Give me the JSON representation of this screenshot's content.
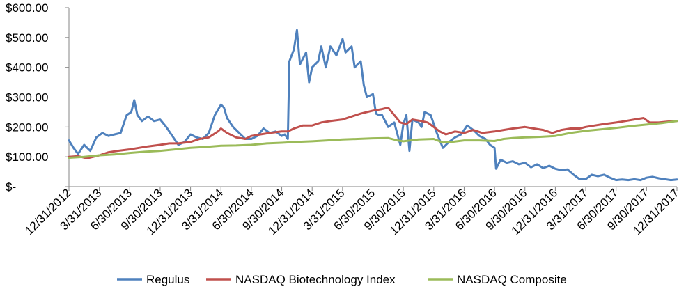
{
  "chart_data": {
    "type": "line",
    "title": "",
    "xlabel": "",
    "ylabel": "",
    "ylim": [
      0,
      600
    ],
    "grid": false,
    "legend_position": "bottom",
    "y_ticks": [
      {
        "value": 0,
        "label": "$-"
      },
      {
        "value": 100,
        "label": "$100.00"
      },
      {
        "value": 200,
        "label": "$200.00"
      },
      {
        "value": 300,
        "label": "$300.00"
      },
      {
        "value": 400,
        "label": "$400.00"
      },
      {
        "value": 500,
        "label": "$500.00"
      },
      {
        "value": 600,
        "label": "$600.00"
      }
    ],
    "x_labels": [
      "12/31/2012",
      "3/31/2013",
      "6/30/2013",
      "9/30/2013",
      "12/31/2013",
      "3/31/2014",
      "6/30/2014",
      "9/30/2014",
      "12/31/2014",
      "3/31/2015",
      "6/30/2015",
      "9/30/2015",
      "12/31/2015",
      "3/31/2016",
      "6/30/2016",
      "9/30/2016",
      "12/31/2016",
      "3/31/2017",
      "6/30/2017",
      "9/30/2017",
      "12/31/2017"
    ],
    "series": [
      {
        "name": "Regulus",
        "color": "#4f81bd",
        "points": [
          [
            0,
            155
          ],
          [
            0.15,
            130
          ],
          [
            0.3,
            110
          ],
          [
            0.5,
            140
          ],
          [
            0.7,
            120
          ],
          [
            0.9,
            165
          ],
          [
            1.1,
            180
          ],
          [
            1.3,
            170
          ],
          [
            1.5,
            175
          ],
          [
            1.7,
            180
          ],
          [
            1.9,
            240
          ],
          [
            2.05,
            250
          ],
          [
            2.15,
            290
          ],
          [
            2.25,
            240
          ],
          [
            2.4,
            220
          ],
          [
            2.6,
            235
          ],
          [
            2.8,
            220
          ],
          [
            3.0,
            225
          ],
          [
            3.2,
            200
          ],
          [
            3.4,
            170
          ],
          [
            3.6,
            140
          ],
          [
            3.8,
            150
          ],
          [
            4.0,
            175
          ],
          [
            4.2,
            165
          ],
          [
            4.4,
            160
          ],
          [
            4.6,
            180
          ],
          [
            4.8,
            240
          ],
          [
            5.0,
            275
          ],
          [
            5.1,
            265
          ],
          [
            5.2,
            230
          ],
          [
            5.4,
            200
          ],
          [
            5.6,
            180
          ],
          [
            5.8,
            160
          ],
          [
            6.0,
            160
          ],
          [
            6.2,
            170
          ],
          [
            6.4,
            195
          ],
          [
            6.6,
            180
          ],
          [
            6.8,
            185
          ],
          [
            7.0,
            170
          ],
          [
            7.1,
            175
          ],
          [
            7.2,
            160
          ],
          [
            7.25,
            420
          ],
          [
            7.4,
            460
          ],
          [
            7.5,
            525
          ],
          [
            7.6,
            410
          ],
          [
            7.8,
            450
          ],
          [
            7.9,
            350
          ],
          [
            8.0,
            400
          ],
          [
            8.2,
            420
          ],
          [
            8.3,
            470
          ],
          [
            8.45,
            400
          ],
          [
            8.6,
            470
          ],
          [
            8.8,
            440
          ],
          [
            9.0,
            495
          ],
          [
            9.1,
            450
          ],
          [
            9.3,
            470
          ],
          [
            9.4,
            400
          ],
          [
            9.6,
            420
          ],
          [
            9.7,
            340
          ],
          [
            9.8,
            300
          ],
          [
            10.0,
            310
          ],
          [
            10.1,
            245
          ],
          [
            10.2,
            240
          ],
          [
            10.3,
            240
          ],
          [
            10.5,
            200
          ],
          [
            10.7,
            215
          ],
          [
            10.9,
            140
          ],
          [
            11.0,
            210
          ],
          [
            11.1,
            240
          ],
          [
            11.2,
            120
          ],
          [
            11.3,
            225
          ],
          [
            11.5,
            215
          ],
          [
            11.6,
            200
          ],
          [
            11.7,
            250
          ],
          [
            11.9,
            240
          ],
          [
            12.1,
            180
          ],
          [
            12.3,
            130
          ],
          [
            12.5,
            150
          ],
          [
            12.7,
            165
          ],
          [
            12.9,
            175
          ],
          [
            13.1,
            205
          ],
          [
            13.3,
            190
          ],
          [
            13.5,
            170
          ],
          [
            13.7,
            160
          ],
          [
            13.85,
            140
          ],
          [
            14.0,
            130
          ],
          [
            14.05,
            60
          ],
          [
            14.2,
            90
          ],
          [
            14.4,
            80
          ],
          [
            14.6,
            85
          ],
          [
            14.8,
            75
          ],
          [
            15.0,
            80
          ],
          [
            15.2,
            65
          ],
          [
            15.4,
            75
          ],
          [
            15.6,
            62
          ],
          [
            15.8,
            70
          ],
          [
            16.0,
            60
          ],
          [
            16.2,
            55
          ],
          [
            16.4,
            58
          ],
          [
            16.6,
            40
          ],
          [
            16.8,
            25
          ],
          [
            17.0,
            25
          ],
          [
            17.2,
            40
          ],
          [
            17.4,
            35
          ],
          [
            17.6,
            40
          ],
          [
            17.8,
            30
          ],
          [
            18.0,
            22
          ],
          [
            18.2,
            24
          ],
          [
            18.4,
            22
          ],
          [
            18.6,
            25
          ],
          [
            18.8,
            22
          ],
          [
            19.0,
            30
          ],
          [
            19.2,
            33
          ],
          [
            19.4,
            28
          ],
          [
            19.6,
            25
          ],
          [
            19.8,
            22
          ],
          [
            20.0,
            24
          ]
        ]
      },
      {
        "name": "NASDAQ Biotechnology Index",
        "color": "#c0504d",
        "points": [
          [
            0,
            100
          ],
          [
            0.3,
            102
          ],
          [
            0.6,
            95
          ],
          [
            1.0,
            105
          ],
          [
            1.3,
            115
          ],
          [
            1.6,
            120
          ],
          [
            2.0,
            125
          ],
          [
            2.3,
            130
          ],
          [
            2.6,
            135
          ],
          [
            3.0,
            140
          ],
          [
            3.3,
            145
          ],
          [
            3.6,
            145
          ],
          [
            4.0,
            150
          ],
          [
            4.3,
            160
          ],
          [
            4.6,
            165
          ],
          [
            4.9,
            185
          ],
          [
            5.0,
            195
          ],
          [
            5.2,
            180
          ],
          [
            5.5,
            165
          ],
          [
            5.8,
            160
          ],
          [
            6.0,
            170
          ],
          [
            6.3,
            175
          ],
          [
            6.6,
            180
          ],
          [
            7.0,
            185
          ],
          [
            7.2,
            185
          ],
          [
            7.4,
            195
          ],
          [
            7.7,
            205
          ],
          [
            8.0,
            205
          ],
          [
            8.3,
            215
          ],
          [
            8.6,
            220
          ],
          [
            9.0,
            225
          ],
          [
            9.3,
            235
          ],
          [
            9.6,
            245
          ],
          [
            10.0,
            255
          ],
          [
            10.3,
            260
          ],
          [
            10.5,
            265
          ],
          [
            10.7,
            240
          ],
          [
            10.9,
            215
          ],
          [
            11.1,
            210
          ],
          [
            11.3,
            225
          ],
          [
            11.6,
            220
          ],
          [
            11.8,
            215
          ],
          [
            12.0,
            200
          ],
          [
            12.2,
            185
          ],
          [
            12.4,
            175
          ],
          [
            12.7,
            185
          ],
          [
            13.0,
            180
          ],
          [
            13.3,
            190
          ],
          [
            13.6,
            180
          ],
          [
            14.0,
            185
          ],
          [
            14.3,
            190
          ],
          [
            14.6,
            195
          ],
          [
            15.0,
            200
          ],
          [
            15.3,
            195
          ],
          [
            15.6,
            190
          ],
          [
            15.9,
            180
          ],
          [
            16.2,
            190
          ],
          [
            16.5,
            195
          ],
          [
            16.8,
            195
          ],
          [
            17.0,
            200
          ],
          [
            17.3,
            205
          ],
          [
            17.6,
            210
          ],
          [
            18.0,
            215
          ],
          [
            18.3,
            220
          ],
          [
            18.6,
            225
          ],
          [
            18.9,
            230
          ],
          [
            19.1,
            215
          ],
          [
            19.4,
            215
          ],
          [
            19.7,
            218
          ],
          [
            20.0,
            220
          ]
        ]
      },
      {
        "name": "NASDAQ Composite",
        "color": "#9bbb59",
        "points": [
          [
            0,
            97
          ],
          [
            0.5,
            100
          ],
          [
            1.0,
            105
          ],
          [
            1.5,
            108
          ],
          [
            2.0,
            113
          ],
          [
            2.5,
            117
          ],
          [
            3.0,
            120
          ],
          [
            3.5,
            125
          ],
          [
            4.0,
            130
          ],
          [
            4.5,
            133
          ],
          [
            5.0,
            137
          ],
          [
            5.5,
            138
          ],
          [
            6.0,
            140
          ],
          [
            6.5,
            145
          ],
          [
            7.0,
            147
          ],
          [
            7.5,
            150
          ],
          [
            8.0,
            152
          ],
          [
            8.5,
            155
          ],
          [
            9.0,
            158
          ],
          [
            9.5,
            160
          ],
          [
            10.0,
            162
          ],
          [
            10.5,
            163
          ],
          [
            10.8,
            155
          ],
          [
            11.0,
            152
          ],
          [
            11.5,
            158
          ],
          [
            12.0,
            160
          ],
          [
            12.3,
            148
          ],
          [
            12.6,
            150
          ],
          [
            13.0,
            155
          ],
          [
            13.5,
            155
          ],
          [
            14.0,
            153
          ],
          [
            14.3,
            160
          ],
          [
            14.6,
            163
          ],
          [
            15.0,
            165
          ],
          [
            15.5,
            167
          ],
          [
            16.0,
            170
          ],
          [
            16.5,
            180
          ],
          [
            17.0,
            187
          ],
          [
            17.5,
            192
          ],
          [
            18.0,
            197
          ],
          [
            18.5,
            203
          ],
          [
            19.0,
            208
          ],
          [
            19.5,
            213
          ],
          [
            20.0,
            220
          ]
        ]
      }
    ]
  }
}
